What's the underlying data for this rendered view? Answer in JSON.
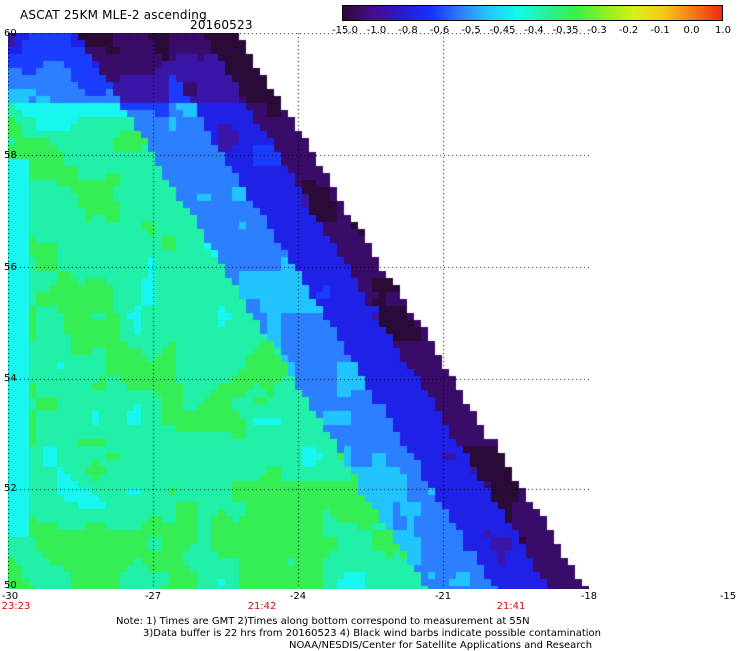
{
  "header": {
    "title": "ASCAT 25KM MLE-2 ascending",
    "date": "20160523"
  },
  "colorbar": {
    "labels": [
      "-15.0",
      "-1.0",
      "-0.8",
      "-0.6",
      "-0.5",
      "-0.45",
      "-0.4",
      "-0.35",
      "-0.3",
      "-0.2",
      "-0.1",
      "0.0",
      "1.0"
    ],
    "colors": [
      "#2a0a36",
      "#4b0a8c",
      "#2a1acc",
      "#1530ff",
      "#2f7bff",
      "#22c8ff",
      "#12fbea",
      "#2af09a",
      "#39f04a",
      "#8ef020",
      "#d8f018",
      "#f7c818",
      "#f57a18",
      "#ef2a10"
    ]
  },
  "map": {
    "lat_labels": [
      "60",
      "58",
      "56",
      "54",
      "52",
      "50"
    ],
    "lon_labels": [
      "-30",
      "-27",
      "-24",
      "-21",
      "-18",
      "-15"
    ],
    "time_labels": [
      {
        "text": "23:23",
        "lon": -30
      },
      {
        "text": "21:42",
        "lon": -24.5
      },
      {
        "text": "21:41",
        "lon": -19.5
      }
    ],
    "lat_range": [
      50,
      60
    ],
    "lon_range": [
      -30,
      -18
    ],
    "value_scale": [
      "#2a0a36",
      "#3a0c6a",
      "#3a16a8",
      "#1f22e6",
      "#1a3cff",
      "#2c80ff",
      "#22c4ff",
      "#18f6f0",
      "#20f0a8",
      "#35ee55",
      "#4cf22e",
      "#86f226",
      "#aef01c"
    ]
  },
  "footer": {
    "line1": "Note: 1) Times are GMT 2)Times along bottom correspond to measurement at 55N",
    "line2": "3)Data buffer is 22 hrs from 20160523 4) Black wind barbs indicate possible contamination",
    "line3": "NOAA/NESDIS/Center for Satellite Applications and Research"
  }
}
